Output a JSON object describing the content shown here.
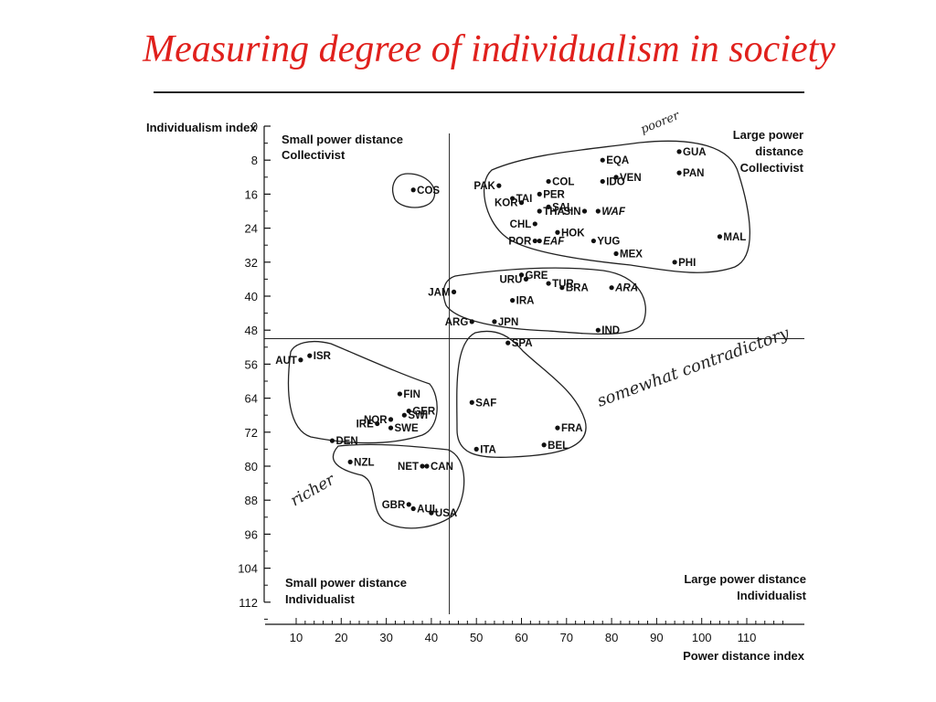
{
  "slide": {
    "title": "Measuring degree of individualism in society"
  },
  "chart_data": {
    "type": "scatter",
    "xlabel": "Power distance index",
    "ylabel": "Individualism index",
    "xlim": [
      10,
      120
    ],
    "ylim": [
      0,
      112
    ],
    "y_inverted": true,
    "x_ticks": [
      10,
      20,
      30,
      40,
      50,
      60,
      70,
      80,
      90,
      100,
      110
    ],
    "y_ticks": [
      0,
      8,
      16,
      24,
      32,
      40,
      48,
      56,
      64,
      72,
      80,
      88,
      96,
      104,
      112
    ],
    "divider_x": 44,
    "divider_y": 50,
    "quadrant_labels": [
      [
        "Small power distance",
        "Collectivist"
      ],
      [
        "Large power",
        "distance",
        "Collectivist"
      ],
      [
        "Small power distance",
        "Individualist"
      ],
      [
        "Large power distance",
        "Individualist"
      ]
    ],
    "points": [
      {
        "label": "COS",
        "x": 36,
        "y": 15
      },
      {
        "label": "PAK",
        "x": 55,
        "y": 14
      },
      {
        "label": "COL",
        "x": 66,
        "y": 13
      },
      {
        "label": "EQA",
        "x": 78,
        "y": 8
      },
      {
        "label": "VEN",
        "x": 81,
        "y": 12
      },
      {
        "label": "IDO",
        "x": 78,
        "y": 13
      },
      {
        "label": "GUA",
        "x": 95,
        "y": 6
      },
      {
        "label": "PAN",
        "x": 95,
        "y": 11
      },
      {
        "label": "TAI",
        "x": 58,
        "y": 17
      },
      {
        "label": "PER",
        "x": 64,
        "y": 16
      },
      {
        "label": "SAL",
        "x": 66,
        "y": 19
      },
      {
        "label": "SIN",
        "x": 74,
        "y": 20
      },
      {
        "label": "WAF",
        "x": 77,
        "y": 20
      },
      {
        "label": "KOR",
        "x": 60,
        "y": 18
      },
      {
        "label": "THA",
        "x": 64,
        "y": 20
      },
      {
        "label": "CHL",
        "x": 63,
        "y": 23
      },
      {
        "label": "HOK",
        "x": 68,
        "y": 25
      },
      {
        "label": "POR",
        "x": 63,
        "y": 27
      },
      {
        "label": "EAF",
        "x": 64,
        "y": 27
      },
      {
        "label": "YUG",
        "x": 76,
        "y": 27
      },
      {
        "label": "MEX",
        "x": 81,
        "y": 30
      },
      {
        "label": "MAL",
        "x": 104,
        "y": 26
      },
      {
        "label": "PHI",
        "x": 94,
        "y": 32
      },
      {
        "label": "GRE",
        "x": 60,
        "y": 35
      },
      {
        "label": "URU",
        "x": 61,
        "y": 36
      },
      {
        "label": "JAM",
        "x": 45,
        "y": 39
      },
      {
        "label": "TUR",
        "x": 66,
        "y": 37
      },
      {
        "label": "BRA",
        "x": 69,
        "y": 38
      },
      {
        "label": "ARA",
        "x": 80,
        "y": 38
      },
      {
        "label": "IRA",
        "x": 58,
        "y": 41
      },
      {
        "label": "ARG",
        "x": 49,
        "y": 46
      },
      {
        "label": "JPN",
        "x": 54,
        "y": 46
      },
      {
        "label": "IND",
        "x": 77,
        "y": 48
      },
      {
        "label": "SPA",
        "x": 57,
        "y": 51
      },
      {
        "label": "ISR",
        "x": 13,
        "y": 54
      },
      {
        "label": "AUT",
        "x": 11,
        "y": 55
      },
      {
        "label": "FIN",
        "x": 33,
        "y": 63
      },
      {
        "label": "GER",
        "x": 35,
        "y": 67
      },
      {
        "label": "NOR",
        "x": 31,
        "y": 69
      },
      {
        "label": "SWI",
        "x": 34,
        "y": 68
      },
      {
        "label": "IRE",
        "x": 28,
        "y": 70
      },
      {
        "label": "SWE",
        "x": 31,
        "y": 71
      },
      {
        "label": "DEN",
        "x": 18,
        "y": 74
      },
      {
        "label": "SAF",
        "x": 49,
        "y": 65
      },
      {
        "label": "FRA",
        "x": 68,
        "y": 71
      },
      {
        "label": "BEL",
        "x": 65,
        "y": 75
      },
      {
        "label": "ITA",
        "x": 50,
        "y": 76
      },
      {
        "label": "NZL",
        "x": 22,
        "y": 79
      },
      {
        "label": "NET",
        "x": 38,
        "y": 80
      },
      {
        "label": "CAN",
        "x": 39,
        "y": 80
      },
      {
        "label": "GBR",
        "x": 35,
        "y": 89
      },
      {
        "label": "AUL",
        "x": 36,
        "y": 90
      },
      {
        "label": "USA",
        "x": 40,
        "y": 91
      }
    ],
    "annotations": [
      "poorer",
      "somewhat contradictory",
      "richer"
    ]
  }
}
